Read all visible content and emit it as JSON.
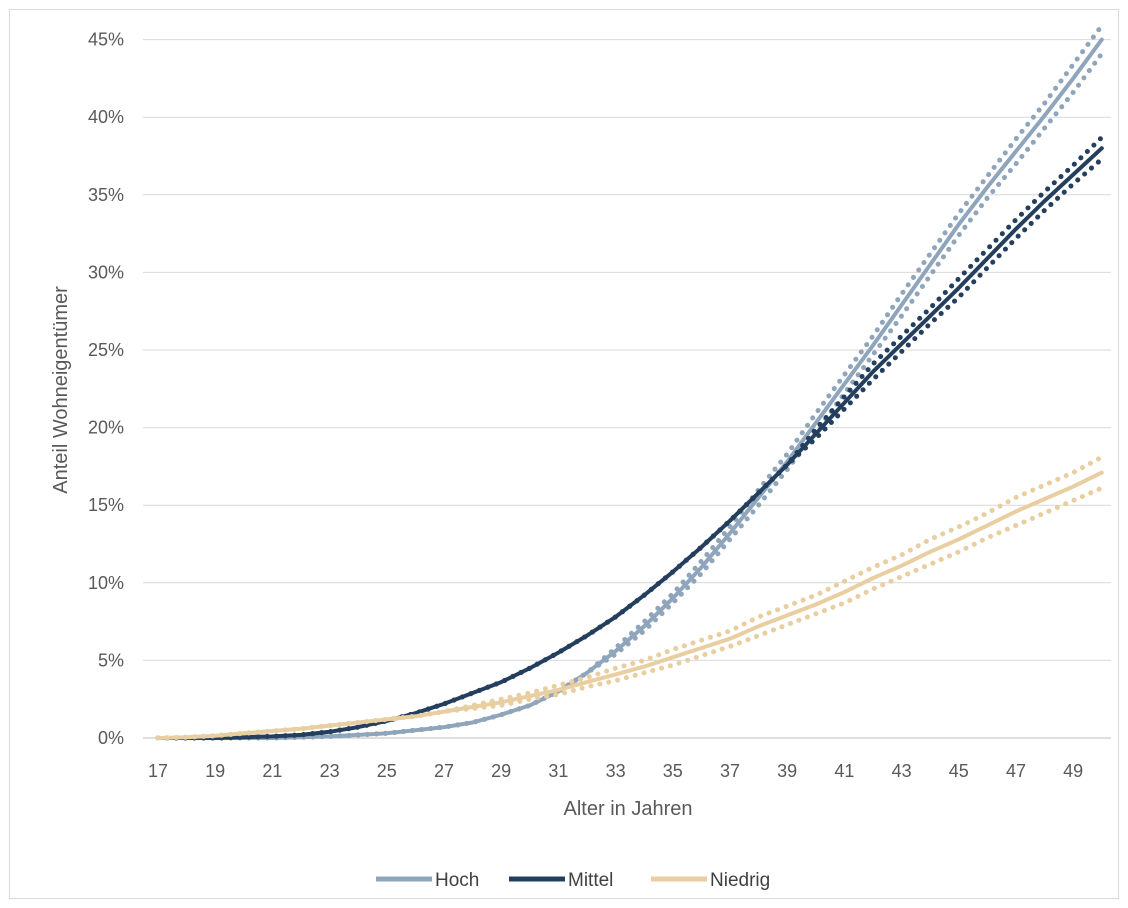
{
  "chart_data": {
    "type": "line",
    "xlabel": "Alter in Jahren",
    "ylabel": "Anteil Wohneigentümer",
    "x": [
      17,
      18,
      19,
      20,
      21,
      22,
      23,
      24,
      25,
      26,
      27,
      28,
      29,
      30,
      31,
      32,
      33,
      34,
      35,
      36,
      37,
      38,
      39,
      40,
      41,
      42,
      43,
      44,
      45,
      46,
      47,
      48,
      49,
      50
    ],
    "x_tick_labels": [
      "17",
      "19",
      "21",
      "23",
      "25",
      "27",
      "29",
      "31",
      "33",
      "35",
      "37",
      "39",
      "41",
      "43",
      "45",
      "47",
      "49"
    ],
    "y_tick_labels": [
      "0%",
      "5%",
      "10%",
      "15%",
      "20%",
      "25%",
      "30%",
      "35%",
      "40%",
      "45%"
    ],
    "ylim": [
      0,
      45
    ],
    "grid": true,
    "legend_position": "bottom",
    "series": [
      {
        "name": "Hoch",
        "color": "#8fa5bb",
        "values": [
          0,
          0,
          0,
          0,
          0,
          0.05,
          0.1,
          0.2,
          0.3,
          0.5,
          0.7,
          1.0,
          1.5,
          2.1,
          3.0,
          4.2,
          5.6,
          7.2,
          9.0,
          11.0,
          13.2,
          15.5,
          17.8,
          20.3,
          22.8,
          25.3,
          27.9,
          30.5,
          33.1,
          35.5,
          37.8,
          40.1,
          42.5,
          45.0
        ],
        "ci_offset": [
          0,
          0,
          0,
          0,
          0,
          0,
          0,
          0,
          0,
          0,
          0,
          0,
          0,
          0,
          0,
          0,
          0.2,
          0.3,
          0.3,
          0.4,
          0.4,
          0.5,
          0.5,
          0.6,
          0.6,
          0.6,
          0.7,
          0.7,
          0.7,
          0.7,
          0.8,
          0.8,
          0.9,
          0.9
        ]
      },
      {
        "name": "Mittel",
        "color": "#243f5e",
        "values": [
          0,
          0,
          0,
          0.05,
          0.1,
          0.2,
          0.4,
          0.7,
          1.1,
          1.6,
          2.2,
          2.9,
          3.6,
          4.5,
          5.5,
          6.6,
          7.8,
          9.2,
          10.7,
          12.3,
          14.0,
          15.8,
          17.6,
          19.6,
          21.6,
          23.6,
          25.4,
          27.2,
          29.0,
          30.9,
          32.8,
          34.6,
          36.3,
          38.0
        ],
        "ci_offset": [
          0,
          0,
          0,
          0,
          0,
          0,
          0,
          0,
          0,
          0,
          0,
          0,
          0,
          0,
          0,
          0,
          0,
          0,
          0,
          0,
          0,
          0,
          0,
          0.3,
          0.4,
          0.5,
          0.5,
          0.5,
          0.6,
          0.6,
          0.6,
          0.6,
          0.6,
          0.7
        ]
      },
      {
        "name": "Niedrig",
        "color": "#e8cea0",
        "values": [
          0,
          0.05,
          0.15,
          0.3,
          0.45,
          0.6,
          0.8,
          1.0,
          1.2,
          1.4,
          1.7,
          2.0,
          2.3,
          2.7,
          3.1,
          3.6,
          4.1,
          4.6,
          5.2,
          5.8,
          6.4,
          7.2,
          7.9,
          8.6,
          9.4,
          10.3,
          11.1,
          12.0,
          12.8,
          13.7,
          14.6,
          15.4,
          16.2,
          17.1
        ],
        "ci_offset": [
          0,
          0,
          0,
          0,
          0,
          0,
          0,
          0,
          0,
          0,
          0,
          0.1,
          0.2,
          0.2,
          0.3,
          0.3,
          0.4,
          0.4,
          0.5,
          0.5,
          0.5,
          0.6,
          0.6,
          0.6,
          0.7,
          0.7,
          0.7,
          0.8,
          0.8,
          0.8,
          0.9,
          0.9,
          0.9,
          1.0
        ]
      }
    ]
  }
}
